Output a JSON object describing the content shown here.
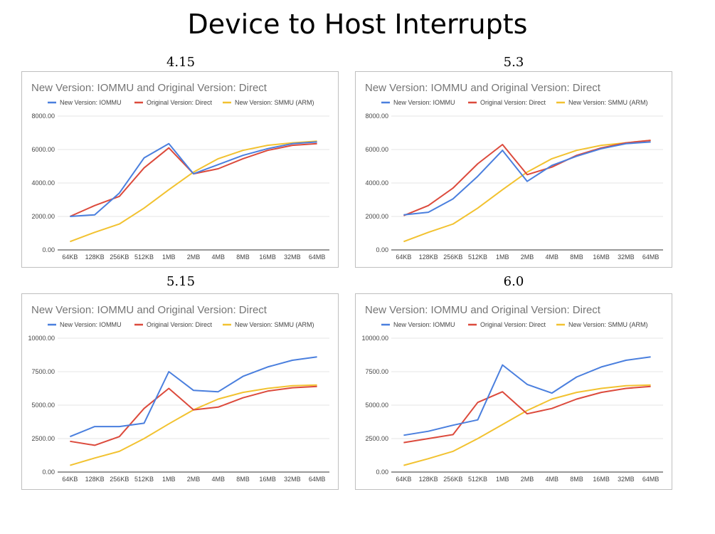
{
  "page": {
    "title": "Device to Host Interrupts"
  },
  "colors": {
    "iommu": "#4a7fde",
    "direct": "#dc4a3c",
    "smmu": "#f2c230",
    "grid": "#e6e6e6",
    "axis": "#333333"
  },
  "chart_data": [
    {
      "id": "chart-4-15",
      "version_label": "4.15",
      "type": "line",
      "title": "New Version: IOMMU and Original Version: Direct",
      "categories": [
        "64KB",
        "128KB",
        "256KB",
        "512KB",
        "1MB",
        "2MB",
        "4MB",
        "8MB",
        "16MB",
        "32MB",
        "64MB"
      ],
      "ylim": [
        0,
        8000
      ],
      "yticks": [
        0,
        2000,
        4000,
        6000,
        8000
      ],
      "ytick_labels": [
        "0.00",
        "2000.00",
        "4000.00",
        "6000.00",
        "8000.00"
      ],
      "legend": "top",
      "grid": true,
      "series": [
        {
          "name": "New Version: IOMMU",
          "color_key": "iommu",
          "values": [
            2000,
            2100,
            3400,
            5500,
            6350,
            4550,
            5100,
            5650,
            6050,
            6350,
            6450
          ]
        },
        {
          "name": "Original Version: Direct",
          "color_key": "direct",
          "values": [
            2000,
            2650,
            3200,
            4900,
            6100,
            4550,
            4850,
            5450,
            5950,
            6250,
            6350
          ]
        },
        {
          "name": "New Version: SMMU (ARM)",
          "color_key": "smmu",
          "values": [
            500,
            1050,
            1550,
            2500,
            3600,
            4650,
            5450,
            5950,
            6250,
            6400,
            6500
          ]
        }
      ]
    },
    {
      "id": "chart-5-3",
      "version_label": "5.3",
      "type": "line",
      "title": "New Version: IOMMU and Original Version: Direct",
      "categories": [
        "64KB",
        "128KB",
        "256KB",
        "512KB",
        "1MB",
        "2MB",
        "4MB",
        "8MB",
        "16MB",
        "32MB",
        "64MB"
      ],
      "ylim": [
        0,
        8000
      ],
      "yticks": [
        0,
        2000,
        4000,
        6000,
        8000
      ],
      "ytick_labels": [
        "0.00",
        "2000.00",
        "4000.00",
        "6000.00",
        "8000.00"
      ],
      "legend": "top",
      "grid": true,
      "series": [
        {
          "name": "New Version: IOMMU",
          "color_key": "iommu",
          "values": [
            2100,
            2250,
            3050,
            4400,
            5950,
            4100,
            5050,
            5600,
            6050,
            6350,
            6450
          ]
        },
        {
          "name": "Original Version: Direct",
          "color_key": "direct",
          "values": [
            2050,
            2650,
            3700,
            5150,
            6300,
            4500,
            4950,
            5650,
            6100,
            6400,
            6550
          ]
        },
        {
          "name": "New Version: SMMU (ARM)",
          "color_key": "smmu",
          "values": [
            500,
            1050,
            1550,
            2500,
            3600,
            4650,
            5450,
            5950,
            6250,
            6400,
            6550
          ]
        }
      ]
    },
    {
      "id": "chart-5-15",
      "version_label": "5.15",
      "type": "line",
      "title": "New Version: IOMMU and Original Version: Direct",
      "categories": [
        "64KB",
        "128KB",
        "256KB",
        "512KB",
        "1MB",
        "2MB",
        "4MB",
        "8MB",
        "16MB",
        "32MB",
        "64MB"
      ],
      "ylim": [
        0,
        10000
      ],
      "yticks": [
        0,
        2500,
        5000,
        7500,
        10000
      ],
      "ytick_labels": [
        "0.00",
        "2500.00",
        "5000.00",
        "7500.00",
        "10000.00"
      ],
      "legend": "top",
      "grid": true,
      "series": [
        {
          "name": "New Version: IOMMU",
          "color_key": "iommu",
          "values": [
            2650,
            3400,
            3400,
            3650,
            7500,
            6100,
            6000,
            7150,
            7850,
            8350,
            8600
          ]
        },
        {
          "name": "Original Version: Direct",
          "color_key": "direct",
          "values": [
            2300,
            2000,
            2650,
            4750,
            6250,
            4650,
            4850,
            5550,
            6050,
            6300,
            6400
          ]
        },
        {
          "name": "New Version: SMMU (ARM)",
          "color_key": "smmu",
          "values": [
            500,
            1050,
            1550,
            2500,
            3600,
            4650,
            5450,
            5950,
            6250,
            6450,
            6500
          ]
        }
      ]
    },
    {
      "id": "chart-6-0",
      "version_label": "6.0",
      "type": "line",
      "title": "New Version: IOMMU and Original Version: Direct",
      "categories": [
        "64KB",
        "128KB",
        "256KB",
        "512KB",
        "1MB",
        "2MB",
        "4MB",
        "8MB",
        "16MB",
        "32MB",
        "64MB"
      ],
      "ylim": [
        0,
        10000
      ],
      "yticks": [
        0,
        2500,
        5000,
        7500,
        10000
      ],
      "ytick_labels": [
        "0.00",
        "2500.00",
        "5000.00",
        "7500.00",
        "10000.00"
      ],
      "legend": "top",
      "grid": true,
      "series": [
        {
          "name": "New Version: IOMMU",
          "color_key": "iommu",
          "values": [
            2750,
            3050,
            3500,
            3900,
            8000,
            6550,
            5900,
            7100,
            7850,
            8350,
            8600
          ]
        },
        {
          "name": "Original Version: Direct",
          "color_key": "direct",
          "values": [
            2200,
            2500,
            2800,
            5200,
            6000,
            4350,
            4750,
            5450,
            5950,
            6250,
            6400
          ]
        },
        {
          "name": "New Version: SMMU (ARM)",
          "color_key": "smmu",
          "values": [
            500,
            1000,
            1550,
            2500,
            3550,
            4600,
            5450,
            5950,
            6250,
            6450,
            6500
          ]
        }
      ]
    }
  ]
}
